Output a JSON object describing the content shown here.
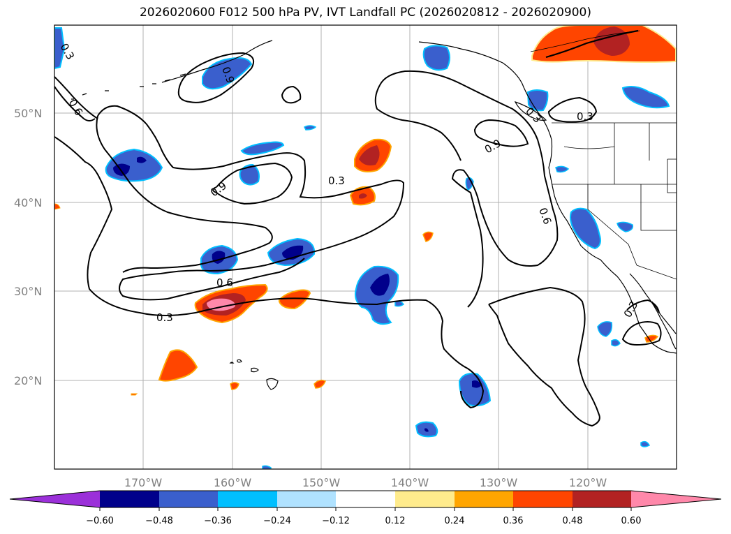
{
  "title": "2026020600 F012 500 hPa PV, IVT Landfall PC (2026020812 - 2026020900)",
  "lat_labels": [
    "50°N",
    "40°N",
    "30°N",
    "20°N"
  ],
  "lon_labels": [
    "170°W",
    "160°W",
    "150°W",
    "140°W",
    "130°W",
    "120°W"
  ],
  "contour_labels": [
    "0.3",
    "0.6",
    "0.3",
    "0.9",
    "0.6",
    "0.9",
    "0.3",
    "0.6",
    "0.9",
    "0.3",
    "0.3",
    "0.3"
  ],
  "colorbar": {
    "ticks": [
      "−0.60",
      "−0.48",
      "−0.36",
      "−0.24",
      "−0.12",
      "0.12",
      "0.24",
      "0.36",
      "0.48",
      "0.60"
    ],
    "colors": [
      "#9b30d9",
      "#00008b",
      "#3a5fcd",
      "#00bfff",
      "#b0e2ff",
      "#ffffff",
      "#ffeb8c",
      "#ffa500",
      "#ff4500",
      "#b22222",
      "#ff88aa"
    ]
  }
}
